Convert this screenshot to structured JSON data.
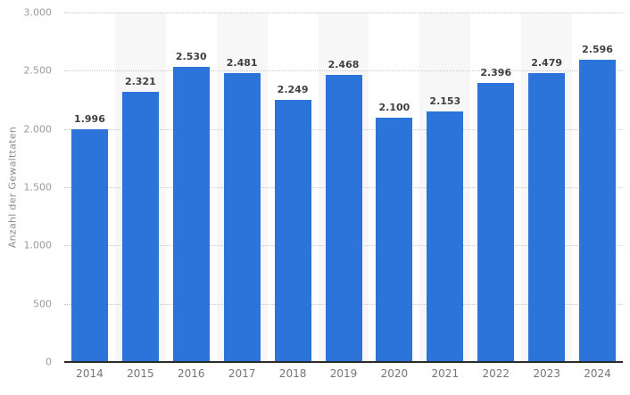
{
  "chart_data": {
    "type": "bar",
    "title": "",
    "xlabel": "",
    "ylabel": "Anzahl der Gewalttaten",
    "categories": [
      "2014",
      "2015",
      "2016",
      "2017",
      "2018",
      "2019",
      "2020",
      "2021",
      "2022",
      "2023",
      "2024"
    ],
    "values": [
      1996,
      2321,
      2530,
      2481,
      2249,
      2468,
      2100,
      2153,
      2396,
      2479,
      2596
    ],
    "value_labels": [
      "1.996",
      "2.321",
      "2.530",
      "2.481",
      "2.249",
      "2.468",
      "2.100",
      "2.153",
      "2.396",
      "2.479",
      "2.596"
    ],
    "ylim": [
      0,
      3000
    ],
    "ytick_values": [
      0,
      500,
      1000,
      1500,
      2000,
      2500,
      3000
    ],
    "ytick_labels": [
      "0",
      "500",
      "1.000",
      "1.500",
      "2.000",
      "2.500",
      "3.000"
    ],
    "grid": "horizontal-dotted",
    "legend": "none",
    "bar_color": "#2d74da",
    "stripe_color": "#f7f7f7",
    "alternating_column_stripes": "behind odd-index categories (2015, 2017, 2019, 2021, 2023)"
  }
}
